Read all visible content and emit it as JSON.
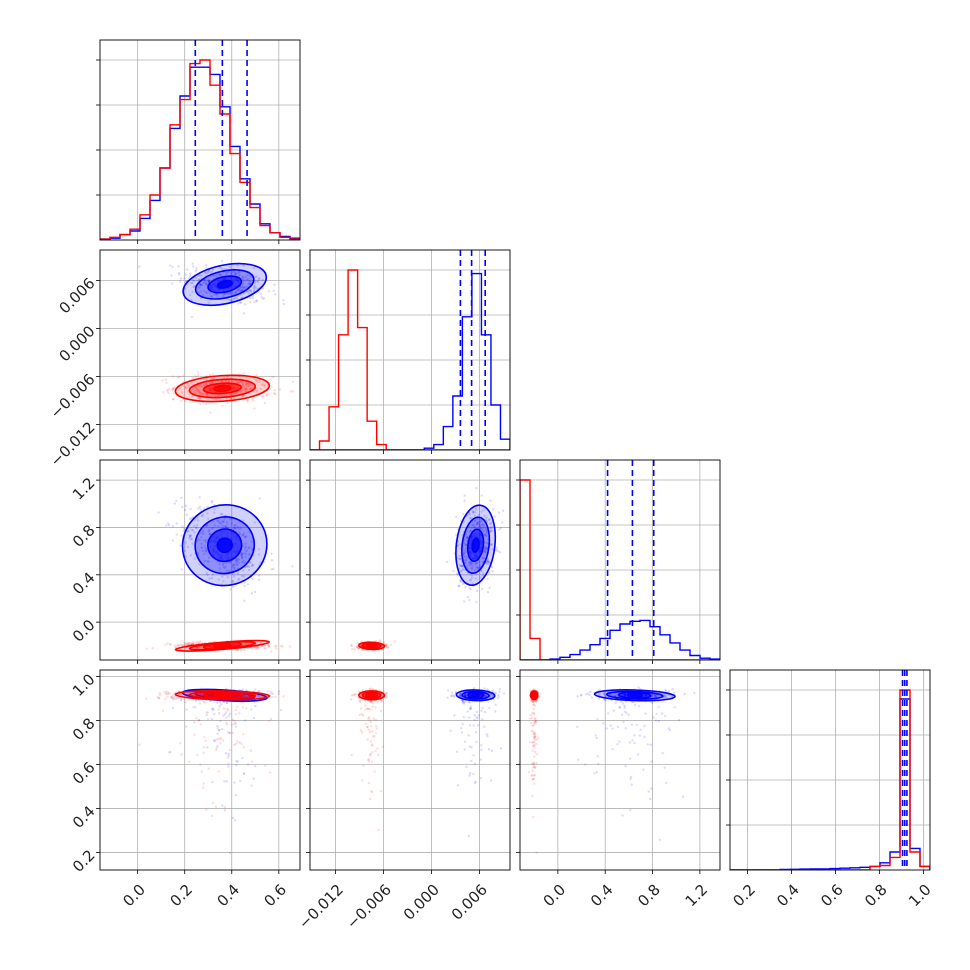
{
  "chart_data": {
    "type": "corner",
    "title": "",
    "colors": {
      "series_a": "#0000ff",
      "series_b": "#ff0000"
    },
    "grid": true,
    "legend": "none",
    "series": [
      {
        "color": "#0000ff",
        "means": [
          0.37,
          0.0055,
          0.65,
          0.915
        ],
        "sds": [
          0.09,
          0.0012,
          0.17,
          0.012
        ],
        "quantile_lines": [
          [
            0.245,
            0.36,
            0.465
          ],
          [
            0.0036,
            0.005,
            0.0067
          ],
          [
            0.42,
            0.63,
            0.81
          ],
          [
            0.905,
            0.915,
            0.925
          ]
        ]
      },
      {
        "color": "#ff0000",
        "means": [
          0.36,
          -0.0075,
          -0.2,
          0.915
        ],
        "sds": [
          0.1,
          0.0008,
          0.015,
          0.01
        ],
        "quantile_lines": []
      }
    ],
    "params": [
      {
        "range": [
          -0.16,
          0.69
        ],
        "ticks": [
          0.0,
          0.2,
          0.4,
          0.6
        ],
        "tick_labels": [
          "0.0",
          "0.2",
          "0.4",
          "0.6"
        ],
        "hist_blue": [
          0.005,
          0.01,
          0.03,
          0.05,
          0.12,
          0.22,
          0.4,
          0.62,
          0.8,
          0.96,
          0.96,
          0.92,
          0.74,
          0.52,
          0.34,
          0.2,
          0.09,
          0.04,
          0.02,
          0.01
        ],
        "hist_red": [
          0.005,
          0.015,
          0.03,
          0.06,
          0.14,
          0.25,
          0.4,
          0.64,
          0.78,
          0.98,
          1.0,
          0.86,
          0.7,
          0.48,
          0.32,
          0.18,
          0.08,
          0.04,
          0.015,
          0.005
        ]
      },
      {
        "range": [
          -0.0152,
          0.0098
        ],
        "ticks": [
          -0.012,
          -0.006,
          0.0,
          0.006
        ],
        "tick_labels": [
          "−0.012",
          "−0.006",
          "0.000",
          "0.006"
        ],
        "hist_blue": [
          0,
          0,
          0,
          0,
          0,
          0,
          0,
          0,
          0,
          0,
          0,
          0,
          0.01,
          0.03,
          0.13,
          0.3,
          0.74,
          0.98,
          0.64,
          0.25,
          0.06
        ],
        "hist_red": [
          0,
          0.05,
          0.24,
          0.64,
          1.0,
          0.68,
          0.16,
          0.03,
          0,
          0,
          0,
          0,
          0,
          0,
          0,
          0,
          0,
          0,
          0,
          0,
          0
        ]
      },
      {
        "range": [
          -0.32,
          1.37
        ],
        "ticks": [
          0.0,
          0.4,
          0.8,
          1.2
        ],
        "tick_labels": [
          "0.0",
          "0.4",
          "0.8",
          "1.2"
        ],
        "hist_blue": [
          0,
          0,
          0,
          0.005,
          0.015,
          0.03,
          0.055,
          0.085,
          0.12,
          0.165,
          0.2,
          0.215,
          0.22,
          0.185,
          0.14,
          0.095,
          0.055,
          0.025,
          0.01,
          0.005
        ],
        "hist_red": [
          1.0,
          0.12,
          0,
          0,
          0,
          0,
          0,
          0,
          0,
          0,
          0,
          0,
          0,
          0,
          0,
          0,
          0,
          0,
          0,
          0
        ]
      },
      {
        "range": [
          0.12,
          1.03
        ],
        "ticks": [
          0.2,
          0.4,
          0.6,
          0.8,
          1.0
        ],
        "tick_labels": [
          "0.2",
          "0.4",
          "0.6",
          "0.8",
          "1.0"
        ],
        "hist_blue": [
          0,
          0,
          0,
          0,
          0,
          0.003,
          0.004,
          0.005,
          0.006,
          0.006,
          0.008,
          0.01,
          0.012,
          0.015,
          0.02,
          0.04,
          0.1,
          0.95,
          0.12,
          0.02
        ],
        "hist_red": [
          0,
          0,
          0,
          0,
          0,
          0,
          0,
          0,
          0,
          0,
          0,
          0,
          0,
          0,
          0.02,
          0.025,
          0.07,
          1.0,
          0.1,
          0.02
        ]
      }
    ]
  }
}
